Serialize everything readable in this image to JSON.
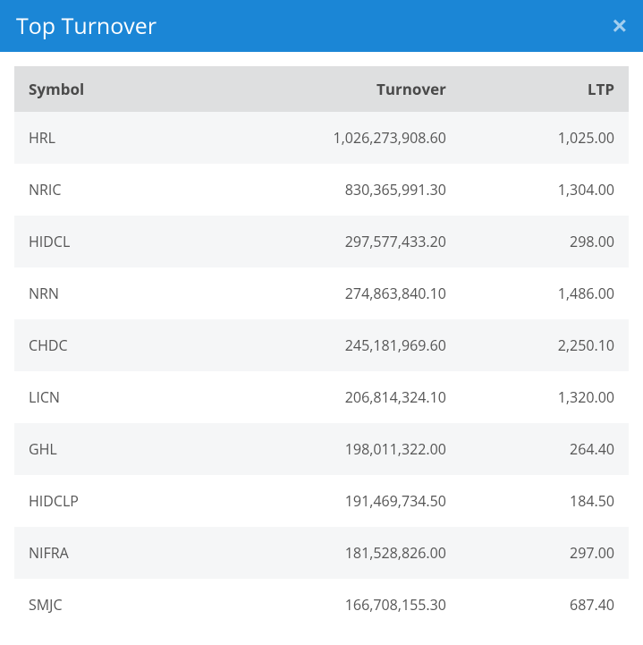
{
  "header": {
    "title": "Top Turnover",
    "close_label": "×"
  },
  "table": {
    "type": "table",
    "columns": [
      "Symbol",
      "Turnover",
      "LTP"
    ],
    "column_align": [
      "left",
      "right",
      "right"
    ],
    "rows": [
      [
        "HRL",
        "1,026,273,908.60",
        "1,025.00"
      ],
      [
        "NRIC",
        "830,365,991.30",
        "1,304.00"
      ],
      [
        "HIDCL",
        "297,577,433.20",
        "298.00"
      ],
      [
        "NRN",
        "274,863,840.10",
        "1,486.00"
      ],
      [
        "CHDC",
        "245,181,969.60",
        "2,250.10"
      ],
      [
        "LICN",
        "206,814,324.10",
        "1,320.00"
      ],
      [
        "GHL",
        "198,011,322.00",
        "264.40"
      ],
      [
        "HIDCLP",
        "191,469,734.50",
        "184.50"
      ],
      [
        "NIFRA",
        "181,528,826.00",
        "297.00"
      ],
      [
        "SMJC",
        "166,708,155.30",
        "687.40"
      ]
    ],
    "header_bg": "#dedfe0",
    "header_color": "#4a4a4a",
    "row_odd_bg": "#f5f6f7",
    "row_even_bg": "#ffffff",
    "text_color": "#555555",
    "header_fontsize": 17,
    "cell_fontsize": 16
  },
  "colors": {
    "header_bg": "#1b86d6",
    "header_text": "#ffffff"
  }
}
